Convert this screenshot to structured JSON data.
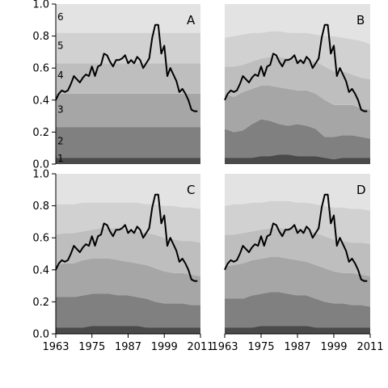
{
  "chart_data": {
    "type": "area",
    "x": [
      1963,
      1966,
      1969,
      1972,
      1975,
      1978,
      1981,
      1984,
      1987,
      1990,
      1993,
      1996,
      1999,
      2002,
      2005,
      2008,
      2011
    ],
    "xticks": [
      1963,
      1975,
      1987,
      1999,
      2011
    ],
    "yticks": [
      0.0,
      0.2,
      0.4,
      0.6,
      0.8,
      1.0
    ],
    "ylim": [
      0,
      1
    ],
    "xlim": [
      1963,
      2011
    ],
    "band_colors": [
      "#4a4a4a",
      "#808080",
      "#a6a6a6",
      "#bebebe",
      "#d1d1d1",
      "#e3e3e3"
    ],
    "line_color": "#000000",
    "line": {
      "x": [
        1963,
        1964,
        1965,
        1966,
        1967,
        1968,
        1969,
        1970,
        1971,
        1972,
        1973,
        1974,
        1975,
        1976,
        1977,
        1978,
        1979,
        1980,
        1981,
        1982,
        1983,
        1984,
        1985,
        1986,
        1987,
        1988,
        1989,
        1990,
        1991,
        1992,
        1993,
        1994,
        1995,
        1996,
        1997,
        1998,
        1999,
        2000,
        2001,
        2002,
        2003,
        2004,
        2005,
        2006,
        2007,
        2008,
        2009,
        2010
      ],
      "y": [
        0.4,
        0.44,
        0.46,
        0.45,
        0.46,
        0.5,
        0.55,
        0.53,
        0.51,
        0.54,
        0.56,
        0.55,
        0.61,
        0.55,
        0.61,
        0.62,
        0.69,
        0.68,
        0.64,
        0.61,
        0.65,
        0.65,
        0.66,
        0.68,
        0.63,
        0.65,
        0.63,
        0.67,
        0.65,
        0.6,
        0.63,
        0.66,
        0.79,
        0.87,
        0.87,
        0.69,
        0.74,
        0.55,
        0.6,
        0.56,
        0.52,
        0.45,
        0.47,
        0.44,
        0.4,
        0.34,
        0.33,
        0.33
      ]
    },
    "panels": [
      {
        "letter": "A",
        "band_labels": [
          "1",
          "2",
          "3",
          "4",
          "5",
          "6"
        ],
        "cumulative": [
          [
            0.04,
            0.04,
            0.04,
            0.04,
            0.04,
            0.04,
            0.04,
            0.04,
            0.04,
            0.04,
            0.04,
            0.04,
            0.04,
            0.04,
            0.04,
            0.04,
            0.04
          ],
          [
            0.23,
            0.23,
            0.23,
            0.23,
            0.23,
            0.23,
            0.23,
            0.23,
            0.23,
            0.23,
            0.23,
            0.23,
            0.23,
            0.23,
            0.23,
            0.23,
            0.23
          ],
          [
            0.44,
            0.44,
            0.44,
            0.44,
            0.44,
            0.44,
            0.44,
            0.44,
            0.44,
            0.44,
            0.44,
            0.44,
            0.44,
            0.44,
            0.44,
            0.44,
            0.44
          ],
          [
            0.63,
            0.63,
            0.63,
            0.63,
            0.63,
            0.63,
            0.63,
            0.63,
            0.63,
            0.63,
            0.63,
            0.63,
            0.63,
            0.63,
            0.63,
            0.63,
            0.63
          ],
          [
            0.82,
            0.82,
            0.82,
            0.82,
            0.82,
            0.82,
            0.82,
            0.82,
            0.82,
            0.82,
            0.82,
            0.82,
            0.82,
            0.82,
            0.82,
            0.82,
            0.82
          ],
          [
            1,
            1,
            1,
            1,
            1,
            1,
            1,
            1,
            1,
            1,
            1,
            1,
            1,
            1,
            1,
            1,
            1
          ]
        ]
      },
      {
        "letter": "B",
        "band_labels": [],
        "cumulative": [
          [
            0.04,
            0.04,
            0.04,
            0.04,
            0.05,
            0.05,
            0.06,
            0.06,
            0.05,
            0.05,
            0.05,
            0.04,
            0.03,
            0.04,
            0.04,
            0.04,
            0.04
          ],
          [
            0.22,
            0.2,
            0.21,
            0.25,
            0.28,
            0.27,
            0.25,
            0.24,
            0.25,
            0.24,
            0.22,
            0.17,
            0.17,
            0.18,
            0.18,
            0.17,
            0.16
          ],
          [
            0.44,
            0.42,
            0.45,
            0.47,
            0.49,
            0.49,
            0.48,
            0.47,
            0.46,
            0.46,
            0.44,
            0.4,
            0.37,
            0.37,
            0.37,
            0.35,
            0.34
          ],
          [
            0.61,
            0.61,
            0.62,
            0.64,
            0.66,
            0.67,
            0.67,
            0.66,
            0.65,
            0.65,
            0.64,
            0.61,
            0.58,
            0.58,
            0.56,
            0.54,
            0.53
          ],
          [
            0.79,
            0.8,
            0.81,
            0.82,
            0.82,
            0.83,
            0.83,
            0.82,
            0.82,
            0.82,
            0.81,
            0.8,
            0.8,
            0.79,
            0.78,
            0.77,
            0.75
          ],
          [
            1,
            1,
            1,
            1,
            1,
            1,
            1,
            1,
            1,
            1,
            1,
            1,
            1,
            1,
            1,
            1,
            1
          ]
        ]
      },
      {
        "letter": "C",
        "band_labels": [],
        "cumulative": [
          [
            0.04,
            0.04,
            0.04,
            0.04,
            0.05,
            0.05,
            0.05,
            0.05,
            0.05,
            0.05,
            0.04,
            0.04,
            0.04,
            0.04,
            0.04,
            0.04,
            0.04
          ],
          [
            0.23,
            0.23,
            0.23,
            0.24,
            0.25,
            0.25,
            0.25,
            0.24,
            0.24,
            0.23,
            0.22,
            0.2,
            0.19,
            0.19,
            0.19,
            0.18,
            0.18
          ],
          [
            0.43,
            0.44,
            0.44,
            0.46,
            0.47,
            0.47,
            0.47,
            0.46,
            0.45,
            0.44,
            0.43,
            0.41,
            0.39,
            0.38,
            0.38,
            0.37,
            0.36
          ],
          [
            0.62,
            0.63,
            0.63,
            0.64,
            0.65,
            0.66,
            0.66,
            0.66,
            0.65,
            0.64,
            0.63,
            0.62,
            0.6,
            0.59,
            0.58,
            0.58,
            0.57
          ],
          [
            0.81,
            0.81,
            0.81,
            0.82,
            0.82,
            0.82,
            0.82,
            0.82,
            0.82,
            0.82,
            0.81,
            0.81,
            0.8,
            0.8,
            0.79,
            0.79,
            0.78
          ],
          [
            1,
            1,
            1,
            1,
            1,
            1,
            1,
            1,
            1,
            1,
            1,
            1,
            1,
            1,
            1,
            1,
            1
          ]
        ]
      },
      {
        "letter": "D",
        "band_labels": [],
        "cumulative": [
          [
            0.04,
            0.04,
            0.04,
            0.04,
            0.05,
            0.05,
            0.05,
            0.05,
            0.05,
            0.05,
            0.04,
            0.04,
            0.04,
            0.04,
            0.04,
            0.04,
            0.04
          ],
          [
            0.22,
            0.22,
            0.22,
            0.24,
            0.25,
            0.26,
            0.26,
            0.25,
            0.24,
            0.24,
            0.22,
            0.2,
            0.19,
            0.19,
            0.18,
            0.18,
            0.17
          ],
          [
            0.42,
            0.43,
            0.44,
            0.46,
            0.47,
            0.48,
            0.48,
            0.47,
            0.46,
            0.45,
            0.43,
            0.41,
            0.39,
            0.38,
            0.38,
            0.37,
            0.36
          ],
          [
            0.62,
            0.62,
            0.63,
            0.64,
            0.65,
            0.66,
            0.66,
            0.66,
            0.66,
            0.65,
            0.63,
            0.61,
            0.59,
            0.58,
            0.57,
            0.57,
            0.56
          ],
          [
            0.8,
            0.81,
            0.81,
            0.82,
            0.82,
            0.83,
            0.83,
            0.83,
            0.82,
            0.82,
            0.81,
            0.8,
            0.79,
            0.79,
            0.78,
            0.78,
            0.77
          ],
          [
            1,
            1,
            1,
            1,
            1,
            1,
            1,
            1,
            1,
            1,
            1,
            1,
            1,
            1,
            1,
            1,
            1
          ]
        ]
      }
    ]
  }
}
